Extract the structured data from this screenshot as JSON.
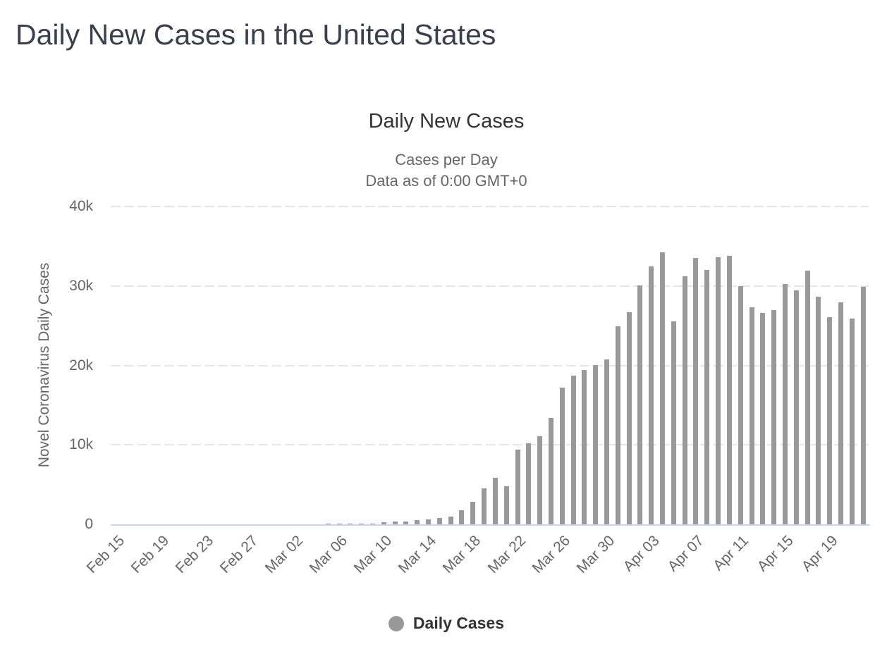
{
  "page": {
    "title": "Daily New Cases in the United States"
  },
  "chart": {
    "title": "Daily New Cases",
    "subtitle_line1": "Cases per Day",
    "subtitle_line2": "Data as of 0:00 GMT+0",
    "y_axis_title": "Novel Coronavirus Daily Cases",
    "legend_label": "Daily Cases"
  },
  "colors": {
    "bar": "#999999",
    "gridline": "#e6e6e6",
    "axis_line": "#ccd6eb",
    "page_title": "#3a3f4b",
    "chart_title": "#333333",
    "subtitle": "#666666",
    "axis_labels": "#666666",
    "legend_marker": "#999999",
    "legend_text": "#333333"
  },
  "chart_data": {
    "type": "bar",
    "title": "Daily New Cases",
    "subtitle": [
      "Cases per Day",
      "Data as of 0:00 GMT+0"
    ],
    "ylabel": "Novel Coronavirus Daily Cases",
    "xlabel": "",
    "ylim": [
      0,
      40000
    ],
    "grid": true,
    "legend_position": "bottom",
    "series_name": "Daily Cases",
    "yticks": [
      {
        "value": 0,
        "label": "0"
      },
      {
        "value": 10000,
        "label": "10k"
      },
      {
        "value": 20000,
        "label": "20k"
      },
      {
        "value": 30000,
        "label": "30k"
      },
      {
        "value": 40000,
        "label": "40k"
      }
    ],
    "xtick_interval": 4,
    "xtick_labels": [
      "Feb 15",
      "Feb 19",
      "Feb 23",
      "Feb 27",
      "Mar 02",
      "Mar 06",
      "Mar 10",
      "Mar 14",
      "Mar 18",
      "Mar 22",
      "Mar 26",
      "Mar 30",
      "Apr 03",
      "Apr 07",
      "Apr 11",
      "Apr 15",
      "Apr 19"
    ],
    "categories": [
      "Feb 15",
      "Feb 16",
      "Feb 17",
      "Feb 18",
      "Feb 19",
      "Feb 20",
      "Feb 21",
      "Feb 22",
      "Feb 23",
      "Feb 24",
      "Feb 25",
      "Feb 26",
      "Feb 27",
      "Feb 28",
      "Feb 29",
      "Mar 01",
      "Mar 02",
      "Mar 03",
      "Mar 04",
      "Mar 05",
      "Mar 06",
      "Mar 07",
      "Mar 08",
      "Mar 09",
      "Mar 10",
      "Mar 11",
      "Mar 12",
      "Mar 13",
      "Mar 14",
      "Mar 15",
      "Mar 16",
      "Mar 17",
      "Mar 18",
      "Mar 19",
      "Mar 20",
      "Mar 21",
      "Mar 22",
      "Mar 23",
      "Mar 24",
      "Mar 25",
      "Mar 26",
      "Mar 27",
      "Mar 28",
      "Mar 29",
      "Mar 30",
      "Mar 31",
      "Apr 01",
      "Apr 02",
      "Apr 03",
      "Apr 04",
      "Apr 05",
      "Apr 06",
      "Apr 07",
      "Apr 08",
      "Apr 09",
      "Apr 10",
      "Apr 11",
      "Apr 12",
      "Apr 13",
      "Apr 14",
      "Apr 15",
      "Apr 16",
      "Apr 17",
      "Apr 18",
      "Apr 19",
      "Apr 20",
      "Apr 21",
      "Apr 22"
    ],
    "values": [
      0,
      0,
      2,
      0,
      0,
      1,
      19,
      0,
      0,
      18,
      2,
      6,
      1,
      1,
      8,
      20,
      14,
      22,
      34,
      63,
      98,
      116,
      105,
      95,
      291,
      314,
      332,
      553,
      587,
      843,
      983,
      1748,
      2853,
      4503,
      5894,
      4824,
      9400,
      10189,
      11075,
      13355,
      17224,
      18691,
      19452,
      20065,
      20732,
      24914,
      26655,
      30098,
      32425,
      34272,
      25523,
      31240,
      33510,
      31997,
      33606,
      33752,
      30002,
      27276,
      26641,
      26945,
      30206,
      29449,
      31963,
      28622,
      26056,
      27965,
      25858,
      29917
    ]
  }
}
